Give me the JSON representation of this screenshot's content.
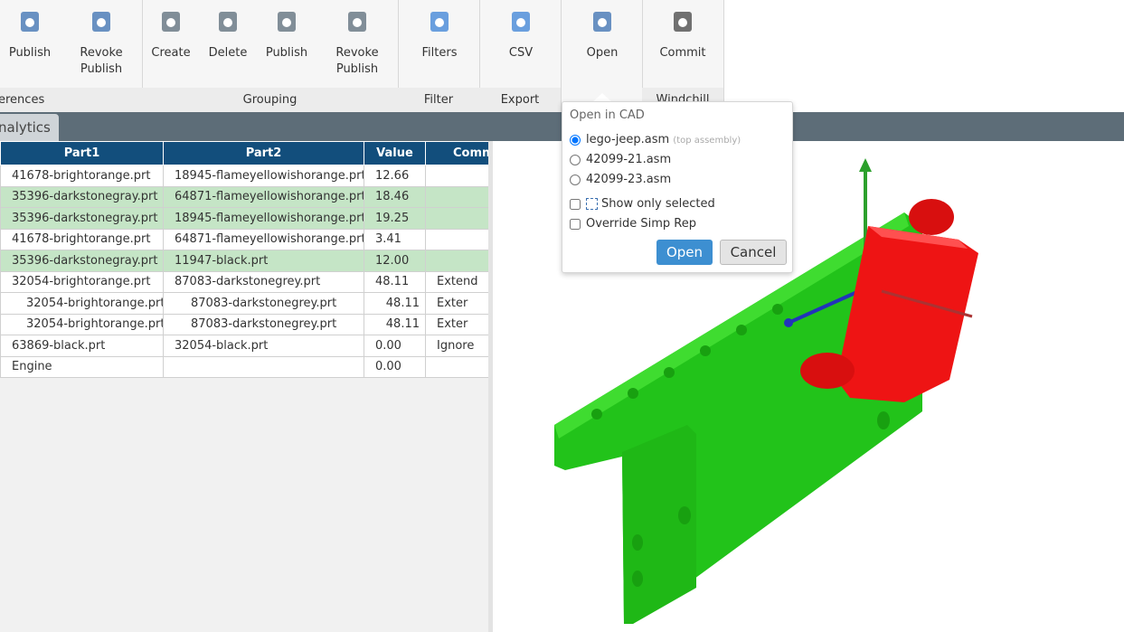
{
  "toolbar": {
    "groups": [
      {
        "label": "erences",
        "buttons": [
          "Publish",
          "Revoke Publish"
        ]
      },
      {
        "label": "Grouping",
        "buttons": [
          "Create",
          "Delete",
          "Publish",
          "Revoke Publish"
        ]
      },
      {
        "label": "Filter",
        "buttons": [
          "Filters"
        ]
      },
      {
        "label": "Export",
        "buttons": [
          "CSV"
        ]
      },
      {
        "buttons": [
          "Open"
        ]
      },
      {
        "label": "Windchill",
        "buttons": [
          "Commit"
        ]
      }
    ]
  },
  "tab": "nalytics",
  "table": {
    "headers": [
      "Part1",
      "Part2",
      "Value",
      "Comm"
    ],
    "rows": [
      [
        "41678-brightorange.prt",
        "18945-flameyellowishorange.prt",
        "12.66",
        null
      ],
      [
        "35396-darkstonegray.prt",
        "64871-flameyellowishorange.prt",
        "18.46",
        null
      ],
      [
        "35396-darkstonegray.prt",
        "18945-flameyellowishorange.prt",
        "19.25",
        null
      ],
      [
        "41678-brightorange.prt",
        "64871-flameyellowishorange.prt",
        "3.41",
        null
      ],
      [
        "35396-darkstonegray.prt",
        "11947-black.prt",
        "12.00",
        null
      ],
      [
        "32054-brightorange.prt",
        "87083-darkstonegrey.prt",
        "48.11",
        "Extend"
      ],
      [
        "32054-brightorange.prt",
        "87083-darkstonegrey.prt",
        "48.11",
        "Exter"
      ],
      [
        "32054-brightorange.prt",
        "87083-darkstonegrey.prt",
        "48.11",
        "Exter"
      ],
      [
        "63869-black.prt",
        "32054-black.prt",
        "0.00",
        "Ignore"
      ],
      [
        "Engine",
        null,
        "0.00",
        null
      ]
    ]
  },
  "dialog": {
    "title": "Open in CAD",
    "options": [
      {
        "label": "lego-jeep.asm",
        "note": "(top assembly)"
      },
      {
        "label": "42099-21.asm"
      },
      {
        "label": "42099-23.asm"
      }
    ],
    "checkboxes": [
      "Show only selected",
      "Override Simp Rep"
    ],
    "buttons": [
      "Open",
      "Cancel"
    ]
  }
}
